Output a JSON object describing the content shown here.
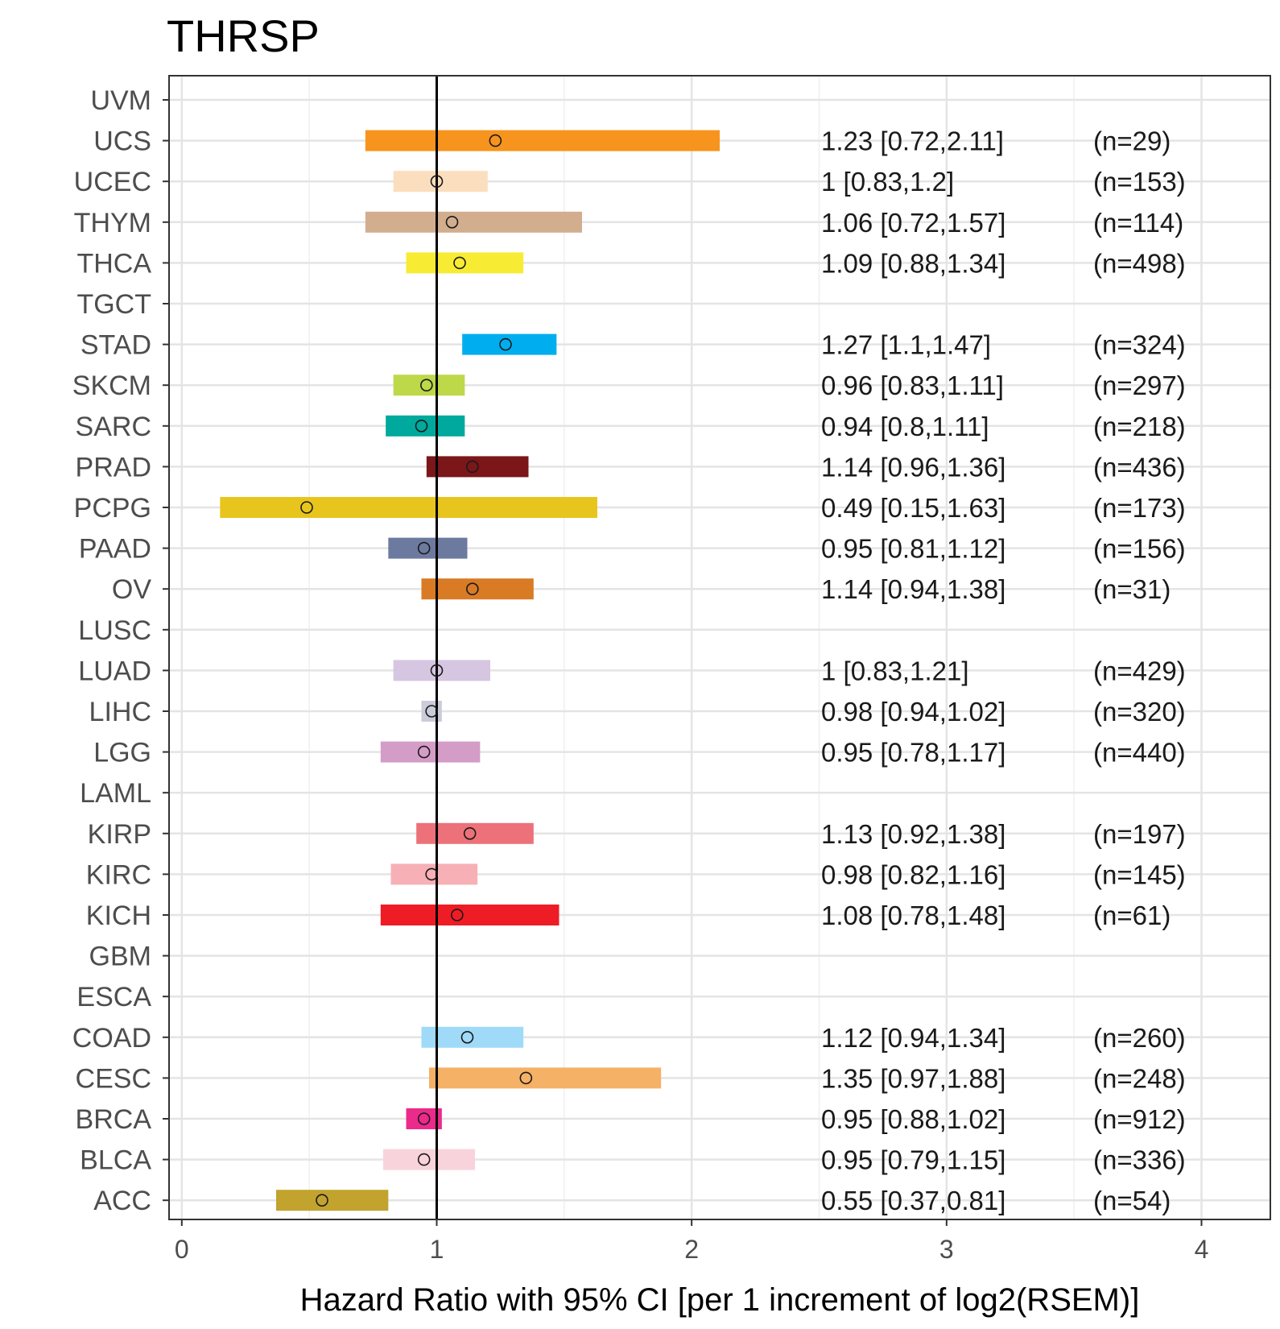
{
  "chart_data": {
    "type": "forest",
    "title": "THRSP",
    "xlabel": "Hazard Ratio with 95% CI [per 1 increment of log2(RSEM)]",
    "ylabel": "",
    "xlim": [
      -0.05,
      4.27
    ],
    "xticks": [
      0,
      1,
      2,
      3,
      4
    ],
    "xtick_labels": [
      "0",
      "1",
      "2",
      "3",
      "4"
    ],
    "reference_line": 1,
    "grid": true,
    "rows": [
      {
        "label": "UVM",
        "hr": null,
        "lo": null,
        "hi": null,
        "color": null,
        "annotation": "",
        "n": ""
      },
      {
        "label": "UCS",
        "hr": 1.23,
        "lo": 0.72,
        "hi": 2.11,
        "color": "#F7941D",
        "annotation": "1.23 [0.72,2.11]",
        "n": "(n=29)"
      },
      {
        "label": "UCEC",
        "hr": 1,
        "lo": 0.83,
        "hi": 1.2,
        "color": "#FBDEBE",
        "annotation": "1 [0.83,1.2]",
        "n": "(n=153)"
      },
      {
        "label": "THYM",
        "hr": 1.06,
        "lo": 0.72,
        "hi": 1.57,
        "color": "#D2AE8F",
        "annotation": "1.06 [0.72,1.57]",
        "n": "(n=114)"
      },
      {
        "label": "THCA",
        "hr": 1.09,
        "lo": 0.88,
        "hi": 1.34,
        "color": "#F7EC33",
        "annotation": "1.09 [0.88,1.34]",
        "n": "(n=498)"
      },
      {
        "label": "TGCT",
        "hr": null,
        "lo": null,
        "hi": null,
        "color": null,
        "annotation": "",
        "n": ""
      },
      {
        "label": "STAD",
        "hr": 1.27,
        "lo": 1.1,
        "hi": 1.47,
        "color": "#00AEEF",
        "annotation": "1.27 [1.1,1.47]",
        "n": "(n=324)"
      },
      {
        "label": "SKCM",
        "hr": 0.96,
        "lo": 0.83,
        "hi": 1.11,
        "color": "#BDD849",
        "annotation": "0.96 [0.83,1.11]",
        "n": "(n=297)"
      },
      {
        "label": "SARC",
        "hr": 0.94,
        "lo": 0.8,
        "hi": 1.11,
        "color": "#00A99D",
        "annotation": "0.94 [0.8,1.11]",
        "n": "(n=218)"
      },
      {
        "label": "PRAD",
        "hr": 1.14,
        "lo": 0.96,
        "hi": 1.36,
        "color": "#7B1619",
        "annotation": "1.14 [0.96,1.36]",
        "n": "(n=436)"
      },
      {
        "label": "PCPG",
        "hr": 0.49,
        "lo": 0.15,
        "hi": 1.63,
        "color": "#E8C51D",
        "annotation": "0.49 [0.15,1.63]",
        "n": "(n=173)"
      },
      {
        "label": "PAAD",
        "hr": 0.95,
        "lo": 0.81,
        "hi": 1.12,
        "color": "#6D7AA0",
        "annotation": "0.95 [0.81,1.12]",
        "n": "(n=156)"
      },
      {
        "label": "OV",
        "hr": 1.14,
        "lo": 0.94,
        "hi": 1.38,
        "color": "#D97B25",
        "annotation": "1.14 [0.94,1.38]",
        "n": "(n=31)"
      },
      {
        "label": "LUSC",
        "hr": null,
        "lo": null,
        "hi": null,
        "color": null,
        "annotation": "",
        "n": ""
      },
      {
        "label": "LUAD",
        "hr": 1,
        "lo": 0.83,
        "hi": 1.21,
        "color": "#D6C6E1",
        "annotation": "1 [0.83,1.21]",
        "n": "(n=429)"
      },
      {
        "label": "LIHC",
        "hr": 0.98,
        "lo": 0.94,
        "hi": 1.02,
        "color": "#CACCDA",
        "annotation": "0.98 [0.94,1.02]",
        "n": "(n=320)"
      },
      {
        "label": "LGG",
        "hr": 0.95,
        "lo": 0.78,
        "hi": 1.17,
        "color": "#D49DC7",
        "annotation": "0.95 [0.78,1.17]",
        "n": "(n=440)"
      },
      {
        "label": "LAML",
        "hr": null,
        "lo": null,
        "hi": null,
        "color": null,
        "annotation": "",
        "n": ""
      },
      {
        "label": "KIRP",
        "hr": 1.13,
        "lo": 0.92,
        "hi": 1.38,
        "color": "#EC7179",
        "annotation": "1.13 [0.92,1.38]",
        "n": "(n=197)"
      },
      {
        "label": "KIRC",
        "hr": 0.98,
        "lo": 0.82,
        "hi": 1.16,
        "color": "#F6B0B6",
        "annotation": "0.98 [0.82,1.16]",
        "n": "(n=145)"
      },
      {
        "label": "KICH",
        "hr": 1.08,
        "lo": 0.78,
        "hi": 1.48,
        "color": "#EE1C24",
        "annotation": "1.08 [0.78,1.48]",
        "n": "(n=61)"
      },
      {
        "label": "GBM",
        "hr": null,
        "lo": null,
        "hi": null,
        "color": null,
        "annotation": "",
        "n": ""
      },
      {
        "label": "ESCA",
        "hr": null,
        "lo": null,
        "hi": null,
        "color": null,
        "annotation": "",
        "n": ""
      },
      {
        "label": "COAD",
        "hr": 1.12,
        "lo": 0.94,
        "hi": 1.34,
        "color": "#9FDAF8",
        "annotation": "1.12 [0.94,1.34]",
        "n": "(n=260)"
      },
      {
        "label": "CESC",
        "hr": 1.35,
        "lo": 0.97,
        "hi": 1.88,
        "color": "#F5B166",
        "annotation": "1.35 [0.97,1.88]",
        "n": "(n=248)"
      },
      {
        "label": "BRCA",
        "hr": 0.95,
        "lo": 0.88,
        "hi": 1.02,
        "color": "#EC2A8B",
        "annotation": "0.95 [0.88,1.02]",
        "n": "(n=912)"
      },
      {
        "label": "BLCA",
        "hr": 0.95,
        "lo": 0.79,
        "hi": 1.15,
        "color": "#F9D3DB",
        "annotation": "0.95 [0.79,1.15]",
        "n": "(n=336)"
      },
      {
        "label": "ACC",
        "hr": 0.55,
        "lo": 0.37,
        "hi": 0.81,
        "color": "#C1A32E",
        "annotation": "0.55 [0.37,0.81]",
        "n": "(n=54)"
      }
    ]
  }
}
